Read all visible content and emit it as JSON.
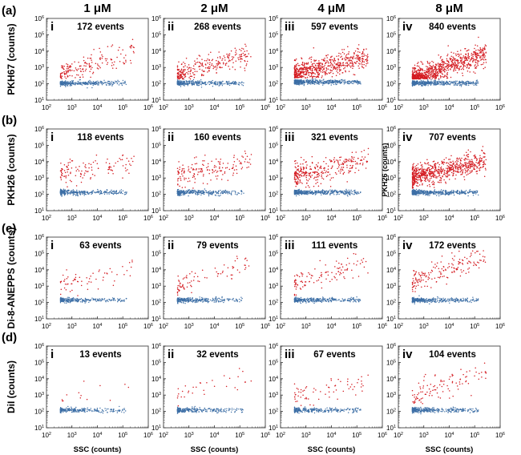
{
  "chart_data": {
    "type": "scatter",
    "title": "",
    "xscale": "log",
    "yscale": "log",
    "xlim": [
      100,
      1000000
    ],
    "ylim": [
      10,
      1000000
    ],
    "x_ticks": [
      "10^2",
      "10^3",
      "10^4",
      "10^5",
      "10^6"
    ],
    "y_ticks": [
      "10^1",
      "10^2",
      "10^3",
      "10^4",
      "10^5",
      "10^6"
    ],
    "xlabel": "SSC (counts)",
    "column_titles": [
      "1 μM",
      "2 μM",
      "4 μM",
      "8 μM"
    ],
    "colors": {
      "positive": "#d41c22",
      "negative": "#3d6fa6"
    },
    "rows": [
      {
        "label": "(a)",
        "ylabel": "PKH67 (counts)",
        "panels": [
          {
            "roman": "i",
            "events_label": "172 events",
            "events": 172,
            "positive_center_y": 600,
            "positive_slope": 0.45,
            "negative_level": 110,
            "density": 0.25
          },
          {
            "roman": "ii",
            "events_label": "268 events",
            "events": 268,
            "positive_center_y": 500,
            "positive_slope": 0.45,
            "negative_level": 110,
            "density": 0.35
          },
          {
            "roman": "iii",
            "events_label": "597 events",
            "events": 597,
            "positive_center_y": 550,
            "positive_slope": 0.35,
            "negative_level": 130,
            "density": 0.7
          },
          {
            "roman": "iv",
            "events_label": "840 events",
            "events": 840,
            "positive_center_y": 300,
            "positive_slope": 0.55,
            "negative_level": 110,
            "density": 1.0
          }
        ]
      },
      {
        "label": "(b)",
        "ylabel": "PKH26 (counts)",
        "panels": [
          {
            "roman": "i",
            "events_label": "118 events",
            "events": 118,
            "positive_center_y": 2500,
            "positive_slope": 0.2,
            "negative_level": 130,
            "density": 0.25
          },
          {
            "roman": "ii",
            "events_label": "160 events",
            "events": 160,
            "positive_center_y": 2000,
            "positive_slope": 0.25,
            "negative_level": 130,
            "density": 0.3
          },
          {
            "roman": "iii",
            "events_label": "321 events",
            "events": 321,
            "positive_center_y": 1800,
            "positive_slope": 0.3,
            "negative_level": 130,
            "density": 0.55
          },
          {
            "roman": "iv",
            "events_label": "707 events",
            "events": 707,
            "positive_center_y": 1500,
            "positive_slope": 0.35,
            "negative_level": 130,
            "density": 0.9,
            "inset_ylabel": "PKH26 (counts)"
          }
        ]
      },
      {
        "label": "(c)",
        "ylabel": "Di-8-ANEPPS (counts)",
        "panels": [
          {
            "roman": "i",
            "events_label": "63 events",
            "events": 63,
            "positive_center_y": 1200,
            "positive_slope": 0.35,
            "negative_level": 140,
            "density": 0.12
          },
          {
            "roman": "ii",
            "events_label": "79 events",
            "events": 79,
            "positive_center_y": 1500,
            "positive_slope": 0.45,
            "negative_level": 140,
            "density": 0.17
          },
          {
            "roman": "iii",
            "events_label": "111 events",
            "events": 111,
            "positive_center_y": 2000,
            "positive_slope": 0.45,
            "negative_level": 140,
            "density": 0.22
          },
          {
            "roman": "iv",
            "events_label": "172 events",
            "events": 172,
            "positive_center_y": 3000,
            "positive_slope": 0.55,
            "negative_level": 140,
            "density": 0.35
          }
        ]
      },
      {
        "label": "(d)",
        "ylabel": "DiI (counts)",
        "panels": [
          {
            "roman": "i",
            "events_label": "13 events",
            "events": 13,
            "positive_center_y": 1200,
            "positive_slope": 0.1,
            "negative_level": 120,
            "density": 0.04
          },
          {
            "roman": "ii",
            "events_label": "32 events",
            "events": 32,
            "positive_center_y": 1500,
            "positive_slope": 0.35,
            "negative_level": 120,
            "density": 0.07
          },
          {
            "roman": "iii",
            "events_label": "67 events",
            "events": 67,
            "positive_center_y": 1200,
            "positive_slope": 0.35,
            "negative_level": 120,
            "density": 0.14
          },
          {
            "roman": "iv",
            "events_label": "104 events",
            "events": 104,
            "positive_center_y": 1500,
            "positive_slope": 0.45,
            "negative_level": 120,
            "density": 0.22
          }
        ]
      }
    ]
  }
}
